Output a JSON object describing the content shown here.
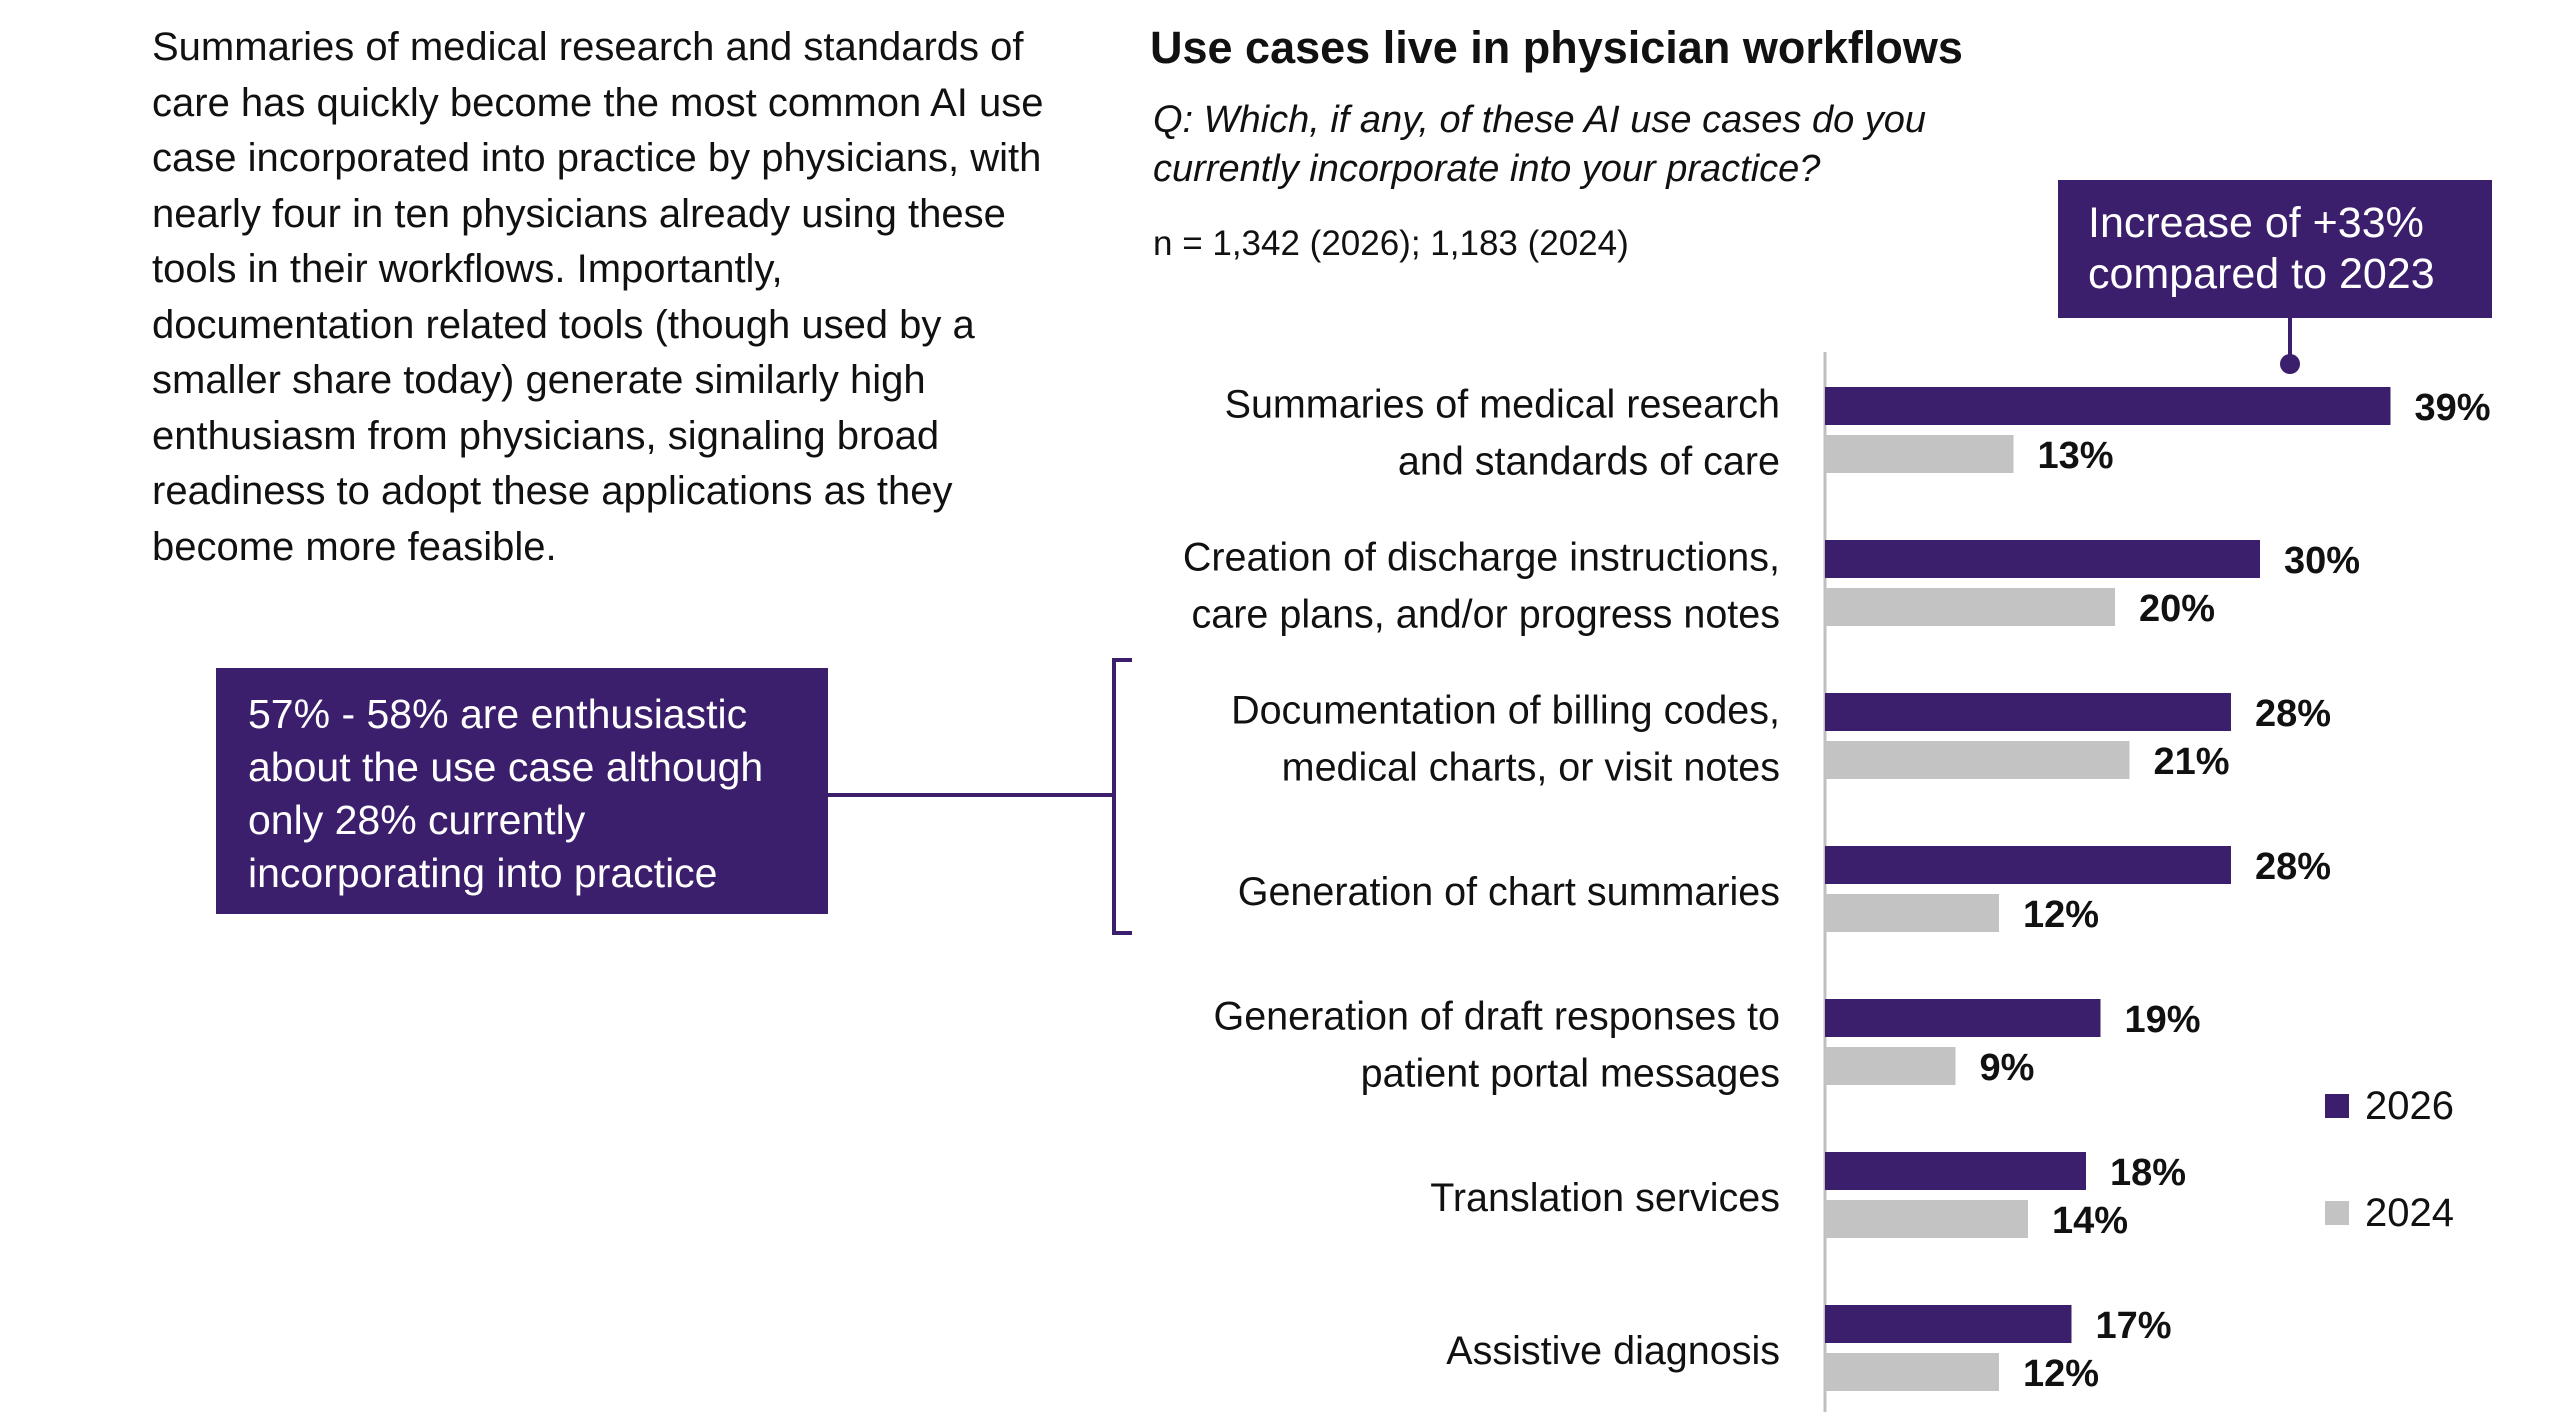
{
  "intro_text": "Summaries of medical research and standards of care has quickly become the most common AI use case incorporated into practice by physicians, with nearly four in ten physicians already using these tools in their workflows. Importantly, documentation related tools (though used by a smaller share today) generate similarly high enthusiasm from physicians, signaling broad readiness to adopt these applications as they become more feasible.",
  "callouts": {
    "left": "57% - 58% are enthusiastic about the use case although only 28% currently incorporating into practice",
    "top": "Increase of +33% compared to 2023"
  },
  "colors": {
    "series_2026": "#3c1f6c",
    "series_2024": "#c3c3c3",
    "callout_bg": "#3c1f6c",
    "axis": "#bfbfbf"
  },
  "chart_data": {
    "type": "bar",
    "orientation": "horizontal",
    "title": "Use cases live in physician workflows",
    "subtitle": "Q: Which, if any, of these AI use cases do you currently incorporate into your practice?",
    "note": "n = 1,342 (2026); 1,183 (2024)",
    "categories": [
      [
        "Summaries of medical research",
        "and standards of care"
      ],
      [
        "Creation of discharge instructions,",
        "care plans, and/or progress notes"
      ],
      [
        "Documentation of billing codes,",
        "medical charts, or visit notes"
      ],
      [
        "Generation of chart summaries"
      ],
      [
        "Generation of draft responses to",
        "patient portal messages"
      ],
      [
        "Translation services"
      ],
      [
        "Assistive diagnosis"
      ]
    ],
    "series": [
      {
        "name": "2026",
        "values": [
          39,
          30,
          28,
          28,
          19,
          18,
          17
        ],
        "labels": [
          "39%",
          "30%",
          "28%",
          "28%",
          "19%",
          "18%",
          "17%"
        ]
      },
      {
        "name": "2024",
        "values": [
          13,
          20,
          21,
          12,
          9,
          14,
          12
        ],
        "labels": [
          "13%",
          "20%",
          "21%",
          "12%",
          "9%",
          "14%",
          "12%"
        ]
      }
    ],
    "xlim": [
      0,
      45
    ],
    "legend_position": "right"
  }
}
